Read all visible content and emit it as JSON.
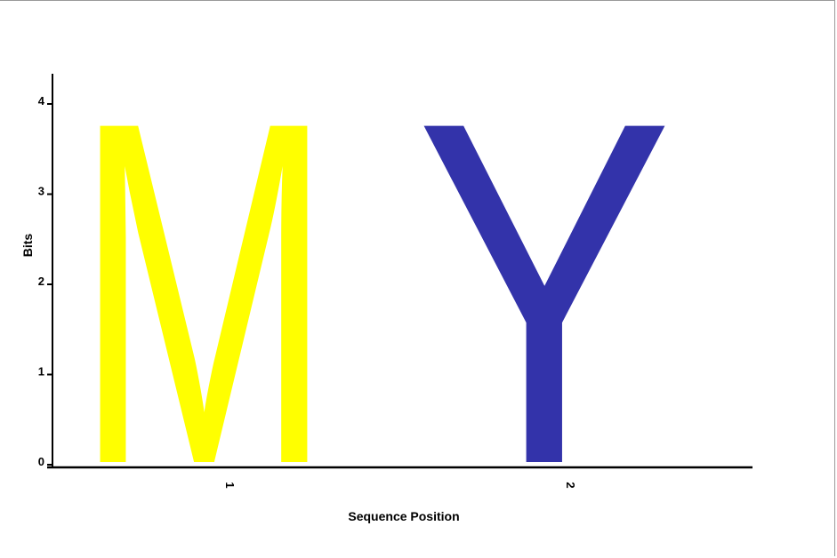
{
  "chart_data": {
    "type": "sequence-logo",
    "title": "",
    "xlabel": "Sequence Position",
    "ylabel": "Bits",
    "ylim": [
      0,
      4
    ],
    "yticks": [
      "0",
      "1",
      "2",
      "3",
      "4"
    ],
    "positions": [
      "1",
      "2"
    ],
    "stacks": [
      {
        "position": "1",
        "letters": [
          {
            "letter": "M",
            "bits": 3.95,
            "color": "#ffff00"
          }
        ]
      },
      {
        "position": "2",
        "letters": [
          {
            "letter": "Y",
            "bits": 3.95,
            "color": "#3333aa"
          }
        ]
      }
    ],
    "colors": {
      "axis": "#000000",
      "frame": "#9a9a9a"
    }
  }
}
